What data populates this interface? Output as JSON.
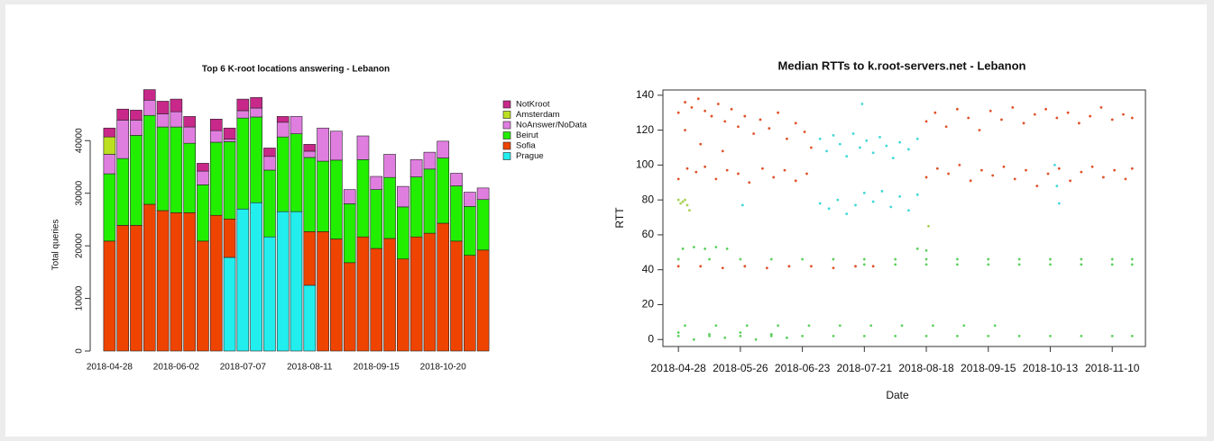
{
  "chart_data": [
    {
      "type": "bar",
      "stacked": true,
      "title": "Top 6 K-root locations answering - Lebanon",
      "y_label": "Total queries",
      "categories": [
        "2018-04-28",
        null,
        null,
        null,
        null,
        "2018-06-02",
        null,
        null,
        null,
        null,
        "2018-07-07",
        null,
        null,
        null,
        null,
        "2018-08-11",
        null,
        null,
        null,
        null,
        "2018-09-15",
        null,
        null,
        null,
        null,
        "2018-10-20",
        null,
        null,
        null
      ],
      "series": [
        {
          "name": "Prague",
          "color": "#22eeee",
          "values": [
            0,
            0,
            0,
            0,
            0,
            0,
            0,
            0,
            0,
            17800,
            27000,
            28200,
            21700,
            26500,
            26500,
            12500,
            0,
            0,
            0,
            0,
            0,
            0,
            0,
            0,
            0,
            0,
            0,
            0,
            0
          ]
        },
        {
          "name": "Sofia",
          "color": "#ee4400",
          "values": [
            20900,
            23900,
            23900,
            27900,
            26700,
            26300,
            26300,
            20900,
            25800,
            7300,
            0,
            0,
            0,
            0,
            0,
            10200,
            22700,
            21300,
            16800,
            21700,
            19500,
            21400,
            17500,
            21700,
            22400,
            24300,
            20900,
            18200,
            19200
          ]
        },
        {
          "name": "Beirut",
          "color": "#22ee00",
          "values": [
            12800,
            12700,
            17100,
            16900,
            15900,
            16300,
            13200,
            10700,
            13900,
            14700,
            17300,
            16300,
            12700,
            14200,
            14800,
            14100,
            13400,
            15000,
            11200,
            14700,
            11200,
            11600,
            9900,
            11400,
            12200,
            12400,
            10500,
            9300,
            9600
          ]
        },
        {
          "name": "NoAnswer/NoData",
          "color": "#e07ee0",
          "values": [
            3700,
            7300,
            2900,
            2900,
            2500,
            2900,
            3100,
            2600,
            2200,
            500,
            1400,
            1700,
            2600,
            2800,
            3300,
            1200,
            6300,
            5500,
            2700,
            4500,
            2500,
            4400,
            3900,
            3300,
            3200,
            3200,
            2400,
            2700,
            2200
          ]
        },
        {
          "name": "Amsterdam",
          "color": "#bce020",
          "values": [
            3300,
            0,
            0,
            0,
            0,
            0,
            0,
            0,
            0,
            0,
            0,
            0,
            0,
            0,
            0,
            0,
            0,
            0,
            0,
            0,
            0,
            0,
            0,
            0,
            0,
            0,
            0,
            0,
            0
          ]
        },
        {
          "name": "NotKroot",
          "color": "#c8288a",
          "values": [
            1700,
            2100,
            1900,
            2000,
            2400,
            2400,
            2000,
            1500,
            2200,
            2100,
            2200,
            2000,
            1600,
            1100,
            0,
            1300,
            0,
            0,
            0,
            0,
            0,
            0,
            0,
            0,
            0,
            0,
            0,
            0,
            0
          ]
        }
      ],
      "ylim": [
        0,
        51000
      ],
      "yticks": [
        0,
        10000,
        20000,
        30000,
        40000
      ],
      "legend": "right"
    },
    {
      "type": "scatter",
      "title": "Median RTTs to k.root-servers.net -  Lebanon",
      "x_label": "Date",
      "y_label": "RTT",
      "xlim": [
        "2018-04-21",
        "2018-11-25"
      ],
      "xticks": [
        "2018-04-28",
        "2018-05-26",
        "2018-06-23",
        "2018-07-21",
        "2018-08-18",
        "2018-09-15",
        "2018-10-13",
        "2018-11-10"
      ],
      "ylim": [
        -4,
        143
      ],
      "yticks": [
        0,
        20,
        40,
        60,
        80,
        100,
        120,
        140
      ],
      "series": [
        {
          "color": "#e0522a",
          "x": [
            "2018-04-28",
            "2018-05-01",
            "2018-05-04",
            "2018-05-07",
            "2018-05-10",
            "2018-05-13",
            "2018-05-16",
            "2018-05-19",
            "2018-05-22",
            "2018-05-25",
            "2018-05-28",
            "2018-06-01",
            "2018-06-04",
            "2018-06-08",
            "2018-06-12",
            "2018-06-16",
            "2018-06-20",
            "2018-06-24",
            "2018-06-27",
            "2018-04-28",
            "2018-05-02",
            "2018-05-06",
            "2018-05-10",
            "2018-05-15",
            "2018-05-20",
            "2018-05-25",
            "2018-05-30",
            "2018-06-05",
            "2018-06-10",
            "2018-06-15",
            "2018-06-20",
            "2018-06-25",
            "2018-05-01",
            "2018-05-08",
            "2018-05-18",
            "2018-08-18",
            "2018-08-22",
            "2018-08-27",
            "2018-09-01",
            "2018-09-06",
            "2018-09-11",
            "2018-09-16",
            "2018-09-21",
            "2018-09-26",
            "2018-10-01",
            "2018-10-06",
            "2018-10-11",
            "2018-10-16",
            "2018-10-21",
            "2018-10-26",
            "2018-10-31",
            "2018-11-05",
            "2018-11-10",
            "2018-11-15",
            "2018-11-19",
            "2018-08-18",
            "2018-08-23",
            "2018-08-28",
            "2018-09-02",
            "2018-09-07",
            "2018-09-12",
            "2018-09-17",
            "2018-09-22",
            "2018-09-27",
            "2018-10-02",
            "2018-10-07",
            "2018-10-12",
            "2018-10-17",
            "2018-10-22",
            "2018-10-27",
            "2018-11-01",
            "2018-11-06",
            "2018-11-11",
            "2018-11-16",
            "2018-11-19",
            "2018-04-28",
            "2018-05-08",
            "2018-05-18",
            "2018-05-28",
            "2018-06-07",
            "2018-06-17",
            "2018-06-27",
            "2018-07-07",
            "2018-07-17",
            "2018-07-25"
          ],
          "y": [
            130,
            136,
            133,
            138,
            131,
            128,
            135,
            125,
            132,
            122,
            128,
            118,
            126,
            121,
            130,
            115,
            124,
            119,
            110,
            92,
            98,
            96,
            99,
            92,
            97,
            95,
            90,
            98,
            93,
            97,
            91,
            95,
            120,
            112,
            108,
            125,
            130,
            122,
            132,
            127,
            120,
            131,
            126,
            133,
            124,
            129,
            132,
            127,
            130,
            124,
            128,
            133,
            126,
            129,
            127,
            93,
            98,
            95,
            100,
            91,
            97,
            94,
            99,
            92,
            97,
            88,
            95,
            98,
            91,
            96,
            99,
            93,
            97,
            92,
            98,
            42,
            42,
            41,
            42,
            41,
            42,
            42,
            41,
            42,
            42
          ]
        },
        {
          "color": "#40d8d8",
          "x": [
            "2018-07-01",
            "2018-07-04",
            "2018-07-07",
            "2018-07-10",
            "2018-07-13",
            "2018-07-16",
            "2018-07-19",
            "2018-07-22",
            "2018-07-25",
            "2018-07-28",
            "2018-07-31",
            "2018-08-03",
            "2018-08-06",
            "2018-08-10",
            "2018-08-14",
            "2018-07-01",
            "2018-07-05",
            "2018-07-09",
            "2018-07-13",
            "2018-07-17",
            "2018-07-21",
            "2018-07-25",
            "2018-07-29",
            "2018-08-02",
            "2018-08-06",
            "2018-08-10",
            "2018-08-14",
            "2018-10-15",
            "2018-10-16",
            "2018-10-17",
            "2018-05-27",
            "2018-07-20"
          ],
          "y": [
            115,
            108,
            117,
            112,
            105,
            118,
            110,
            114,
            107,
            116,
            111,
            104,
            113,
            109,
            115,
            78,
            75,
            80,
            72,
            77,
            84,
            79,
            85,
            76,
            82,
            74,
            83,
            100,
            88,
            78,
            77,
            135
          ]
        },
        {
          "color": "#5cd05c",
          "x": [
            "2018-04-28",
            "2018-05-12",
            "2018-05-26",
            "2018-06-09",
            "2018-06-23",
            "2018-07-07",
            "2018-07-21",
            "2018-08-04",
            "2018-08-18",
            "2018-09-01",
            "2018-09-15",
            "2018-09-29",
            "2018-10-13",
            "2018-10-27",
            "2018-11-10",
            "2018-11-19",
            "2018-07-21",
            "2018-08-04",
            "2018-08-18",
            "2018-09-01",
            "2018-09-15",
            "2018-09-29",
            "2018-10-13",
            "2018-10-27",
            "2018-11-10",
            "2018-11-19",
            "2018-04-30",
            "2018-05-05",
            "2018-05-10",
            "2018-05-15",
            "2018-05-20",
            "2018-08-14",
            "2018-08-18",
            "2018-05-01",
            "2018-05-15",
            "2018-05-29",
            "2018-06-12",
            "2018-06-26",
            "2018-07-10",
            "2018-07-24",
            "2018-08-07",
            "2018-08-21",
            "2018-09-04",
            "2018-09-18",
            "2018-04-28",
            "2018-05-12",
            "2018-05-26",
            "2018-06-09",
            "2018-06-23",
            "2018-07-07",
            "2018-07-21",
            "2018-08-04",
            "2018-08-18",
            "2018-09-01",
            "2018-09-15",
            "2018-09-29",
            "2018-10-13",
            "2018-10-27",
            "2018-11-10",
            "2018-11-19",
            "2018-04-28",
            "2018-05-05",
            "2018-05-12",
            "2018-05-19",
            "2018-05-26",
            "2018-06-02",
            "2018-06-09",
            "2018-06-16"
          ],
          "y": [
            46,
            46,
            46,
            46,
            46,
            46,
            46,
            46,
            46,
            46,
            46,
            46,
            46,
            46,
            46,
            46,
            43,
            43,
            43,
            43,
            43,
            43,
            43,
            43,
            43,
            43,
            52,
            53,
            52,
            53,
            52,
            52,
            51,
            8,
            8,
            8,
            8,
            8,
            8,
            8,
            8,
            8,
            8,
            8,
            2,
            2,
            2,
            2,
            2,
            2,
            2,
            2,
            2,
            2,
            2,
            2,
            2,
            2,
            2,
            2,
            4,
            0,
            3,
            1,
            4,
            0,
            3,
            1
          ]
        },
        {
          "color": "#a8d050",
          "x": [
            "2018-04-28",
            "2018-04-29",
            "2018-04-30",
            "2018-05-01",
            "2018-05-02",
            "2018-05-03",
            "2018-08-19"
          ],
          "y": [
            80,
            78,
            79,
            80,
            77,
            74,
            65
          ]
        }
      ]
    }
  ]
}
